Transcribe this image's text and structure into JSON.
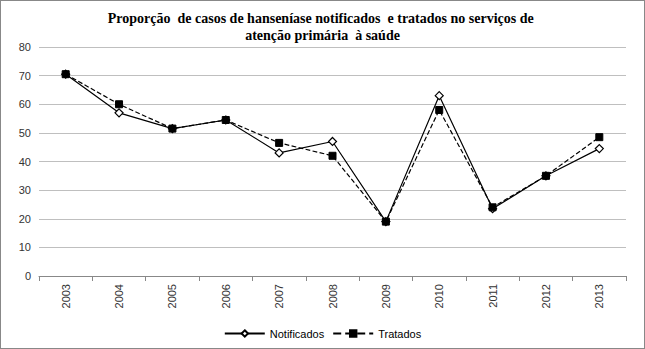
{
  "chart_data": {
    "type": "line",
    "title": "Proporção  de casos de hanseníase notificados  e tratados no serviços de atenção primária  à saúde",
    "categories": [
      "2003",
      "2004",
      "2005",
      "2006",
      "2007",
      "2008",
      "2009",
      "2010",
      "2011",
      "2012",
      "2013"
    ],
    "series": [
      {
        "name": "Notificados",
        "color": "#000000",
        "marker": "diamond",
        "line_style": "solid",
        "values": [
          70.5,
          57,
          51.5,
          54.5,
          43,
          47,
          19,
          63,
          23.5,
          35,
          44.5
        ]
      },
      {
        "name": "Tratados",
        "color": "#000000",
        "marker": "square",
        "line_style": "dashed",
        "values": [
          70.5,
          60,
          51.5,
          54.5,
          46.5,
          42,
          19,
          58,
          24,
          35,
          48.5
        ]
      }
    ],
    "ylim": [
      0,
      80
    ],
    "yticks": [
      0,
      10,
      20,
      30,
      40,
      50,
      60,
      70,
      80
    ],
    "grid": true,
    "legend": "bottom"
  }
}
